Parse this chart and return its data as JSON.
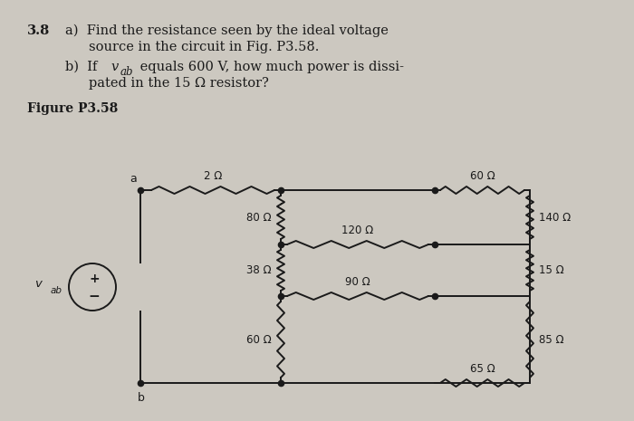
{
  "bg_color": "#ccc8c0",
  "title_num": "3.8",
  "title_a1": "a)  Find the resistance seen by the ideal voltage",
  "title_a2": "source in the circuit in Fig. P3.58.",
  "title_b1_pre": "b)  If ",
  "title_b1_v": "v",
  "title_b1_sub": "ab",
  "title_b1_post": " equals 600 V, how much power is dissi-",
  "title_b2": "pated in the 15 Ω resistor?",
  "fig_label": "Figure P3.58",
  "R2": "2 Ω",
  "R80": "80 Ω",
  "R60t": "60 Ω",
  "R140": "140 Ω",
  "R120": "120 Ω",
  "R38": "38 Ω",
  "R15": "15 Ω",
  "R90": "90 Ω",
  "R60b": "60 Ω",
  "R85": "85 Ω",
  "R65": "65 Ω",
  "label_a": "a",
  "label_b": "b",
  "label_vab": "v",
  "label_vab_sub": "ab",
  "lw": 1.4,
  "dot_ms": 4.5,
  "fontsize_text": 10.5,
  "fontsize_label": 9.0,
  "fontsize_res": 8.5
}
